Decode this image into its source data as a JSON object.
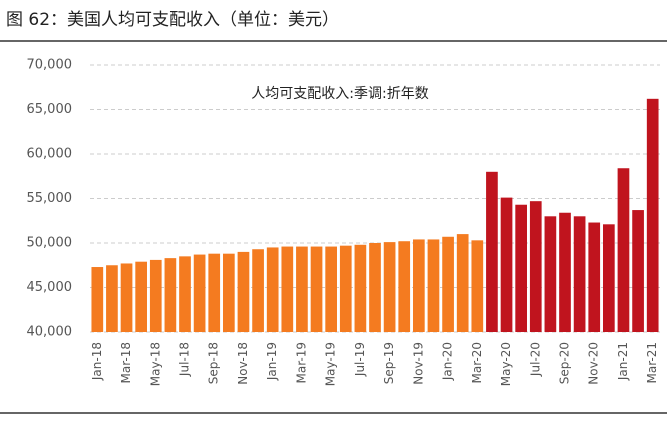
{
  "chart_data": {
    "type": "bar",
    "title": "图 62：美国人均可支配收入（单位：美元）",
    "annotation": "人均可支配收入:季调:折年数",
    "categories": [
      "Jan-18",
      null,
      "Mar-18",
      null,
      "May-18",
      null,
      "Jul-18",
      null,
      "Sep-18",
      null,
      "Nov-18",
      null,
      "Jan-19",
      null,
      "Mar-19",
      null,
      "May-19",
      null,
      "Jul-19",
      null,
      "Sep-19",
      null,
      "Nov-19",
      null,
      "Jan-20",
      null,
      "Mar-20",
      null,
      "May-20",
      null,
      "Jul-20",
      null,
      "Sep-20",
      null,
      "Nov-20",
      null,
      "Jan-21",
      null,
      "Mar-21"
    ],
    "values": [
      47300,
      47500,
      47700,
      47900,
      48100,
      48300,
      48500,
      48700,
      48800,
      48800,
      49000,
      49300,
      49500,
      49600,
      49600,
      49600,
      49600,
      49700,
      49800,
      50000,
      50100,
      50200,
      50400,
      50400,
      50700,
      51000,
      50300,
      58000,
      55100,
      54300,
      54700,
      53000,
      53400,
      53000,
      52300,
      52100,
      58400,
      53700,
      66200
    ],
    "colors": [
      "#f47b20",
      "#f47b20",
      "#f47b20",
      "#f47b20",
      "#f47b20",
      "#f47b20",
      "#f47b20",
      "#f47b20",
      "#f47b20",
      "#f47b20",
      "#f47b20",
      "#f47b20",
      "#f47b20",
      "#f47b20",
      "#f47b20",
      "#f47b20",
      "#f47b20",
      "#f47b20",
      "#f47b20",
      "#f47b20",
      "#f47b20",
      "#f47b20",
      "#f47b20",
      "#f47b20",
      "#f47b20",
      "#f47b20",
      "#f47b20",
      "#c0141e",
      "#c0141e",
      "#c0141e",
      "#c0141e",
      "#c0141e",
      "#c0141e",
      "#c0141e",
      "#c0141e",
      "#c0141e",
      "#c0141e",
      "#c0141e",
      "#c0141e"
    ],
    "ylim": [
      40000,
      70000
    ],
    "yticks": [
      {
        "value": 40000,
        "label": "40,000"
      },
      {
        "value": 45000,
        "label": "45,000"
      },
      {
        "value": 50000,
        "label": "50,000"
      },
      {
        "value": 55000,
        "label": "55,000"
      },
      {
        "value": 60000,
        "label": "60,000"
      },
      {
        "value": 65000,
        "label": "65,000"
      },
      {
        "value": 70000,
        "label": "70,000"
      }
    ],
    "grid": true
  }
}
